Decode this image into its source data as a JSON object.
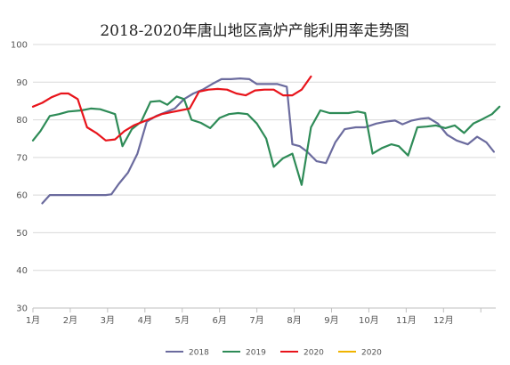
{
  "chart_data": {
    "type": "line",
    "title": "2018-2020年唐山地区高炉产能利用率走势图",
    "xlabel": "",
    "ylabel": "",
    "ylim": [
      30,
      100
    ],
    "yticks": [
      30,
      40,
      50,
      60,
      70,
      80,
      90,
      100
    ],
    "xlim": [
      1,
      13.4
    ],
    "xtick_labels": [
      "1月",
      "2月",
      "3月",
      "4月",
      "5月",
      "6月",
      "7月",
      "8月",
      "9月",
      "10月",
      "11月",
      "12月"
    ],
    "grid": true,
    "legend_position": "bottom",
    "series": [
      {
        "name": "2018",
        "color": "#6b6b9e",
        "points": [
          [
            1.25,
            57.8
          ],
          [
            1.45,
            60.0
          ],
          [
            1.7,
            60.0
          ],
          [
            2.0,
            60.0
          ],
          [
            2.3,
            60.0
          ],
          [
            2.6,
            60.0
          ],
          [
            2.95,
            60.0
          ],
          [
            3.1,
            60.2
          ],
          [
            3.3,
            63.0
          ],
          [
            3.55,
            66.0
          ],
          [
            3.8,
            71.0
          ],
          [
            4.05,
            79.5
          ],
          [
            4.3,
            81.0
          ],
          [
            4.55,
            82.0
          ],
          [
            4.8,
            83.0
          ],
          [
            5.05,
            85.5
          ],
          [
            5.3,
            87.0
          ],
          [
            5.55,
            88.0
          ],
          [
            5.8,
            89.5
          ],
          [
            6.05,
            90.8
          ],
          [
            6.3,
            90.8
          ],
          [
            6.55,
            91.0
          ],
          [
            6.8,
            90.8
          ],
          [
            7.0,
            89.5
          ],
          [
            7.25,
            89.5
          ],
          [
            7.55,
            89.5
          ],
          [
            7.8,
            88.8
          ],
          [
            7.95,
            73.5
          ],
          [
            8.15,
            73.0
          ],
          [
            8.35,
            71.5
          ],
          [
            8.6,
            69.0
          ],
          [
            8.85,
            68.5
          ],
          [
            9.1,
            74.0
          ],
          [
            9.35,
            77.5
          ],
          [
            9.65,
            78.0
          ],
          [
            9.9,
            78.0
          ],
          [
            10.2,
            79.0
          ],
          [
            10.45,
            79.5
          ],
          [
            10.7,
            79.8
          ],
          [
            10.9,
            78.8
          ],
          [
            11.15,
            79.8
          ],
          [
            11.4,
            80.3
          ],
          [
            11.6,
            80.5
          ],
          [
            11.85,
            79.0
          ],
          [
            12.1,
            76.0
          ],
          [
            12.35,
            74.5
          ],
          [
            12.65,
            73.5
          ],
          [
            12.9,
            75.5
          ],
          [
            13.15,
            74.0
          ],
          [
            13.35,
            71.5
          ]
        ]
      },
      {
        "name": "2019",
        "color": "#2e8b57",
        "points": [
          [
            1.0,
            74.5
          ],
          [
            1.2,
            77.0
          ],
          [
            1.45,
            81.0
          ],
          [
            1.7,
            81.5
          ],
          [
            1.95,
            82.2
          ],
          [
            2.3,
            82.5
          ],
          [
            2.55,
            83.0
          ],
          [
            2.8,
            82.8
          ],
          [
            3.05,
            82.0
          ],
          [
            3.2,
            81.5
          ],
          [
            3.4,
            73.0
          ],
          [
            3.65,
            77.5
          ],
          [
            3.9,
            79.5
          ],
          [
            4.15,
            84.8
          ],
          [
            4.4,
            85.0
          ],
          [
            4.6,
            84.0
          ],
          [
            4.85,
            86.2
          ],
          [
            5.05,
            85.5
          ],
          [
            5.25,
            80.0
          ],
          [
            5.5,
            79.2
          ],
          [
            5.75,
            77.8
          ],
          [
            6.0,
            80.5
          ],
          [
            6.25,
            81.5
          ],
          [
            6.5,
            81.8
          ],
          [
            6.75,
            81.5
          ],
          [
            7.0,
            79.0
          ],
          [
            7.25,
            75.0
          ],
          [
            7.45,
            67.5
          ],
          [
            7.7,
            69.8
          ],
          [
            7.95,
            71.0
          ],
          [
            8.2,
            62.7
          ],
          [
            8.45,
            78.0
          ],
          [
            8.7,
            82.5
          ],
          [
            8.95,
            81.8
          ],
          [
            9.2,
            81.8
          ],
          [
            9.45,
            81.8
          ],
          [
            9.7,
            82.2
          ],
          [
            9.9,
            81.8
          ],
          [
            10.1,
            71.0
          ],
          [
            10.35,
            72.5
          ],
          [
            10.6,
            73.5
          ],
          [
            10.8,
            73.0
          ],
          [
            11.05,
            70.5
          ],
          [
            11.3,
            78.0
          ],
          [
            11.55,
            78.2
          ],
          [
            11.8,
            78.5
          ],
          [
            12.05,
            77.8
          ],
          [
            12.3,
            78.5
          ],
          [
            12.55,
            76.5
          ],
          [
            12.8,
            79.0
          ],
          [
            13.05,
            80.2
          ],
          [
            13.3,
            81.5
          ],
          [
            13.5,
            83.5
          ]
        ]
      },
      {
        "name": "2020",
        "color": "#e8141b",
        "points": [
          [
            1.0,
            83.5
          ],
          [
            1.25,
            84.5
          ],
          [
            1.5,
            86.0
          ],
          [
            1.75,
            87.0
          ],
          [
            1.95,
            87.0
          ],
          [
            2.2,
            85.5
          ],
          [
            2.45,
            78.0
          ],
          [
            2.7,
            76.5
          ],
          [
            2.95,
            74.5
          ],
          [
            3.2,
            74.8
          ],
          [
            3.45,
            77.0
          ],
          [
            3.7,
            78.5
          ],
          [
            3.95,
            79.5
          ],
          [
            4.2,
            80.5
          ],
          [
            4.45,
            81.5
          ],
          [
            4.7,
            82.0
          ],
          [
            4.95,
            82.5
          ],
          [
            5.2,
            83.0
          ],
          [
            5.45,
            87.5
          ],
          [
            5.7,
            88.0
          ],
          [
            5.95,
            88.2
          ],
          [
            6.2,
            88.0
          ],
          [
            6.45,
            87.0
          ],
          [
            6.7,
            86.5
          ],
          [
            6.95,
            87.8
          ],
          [
            7.2,
            88.0
          ],
          [
            7.45,
            88.0
          ],
          [
            7.7,
            86.5
          ],
          [
            7.95,
            86.5
          ],
          [
            8.2,
            88.0
          ],
          [
            8.45,
            91.5
          ]
        ]
      },
      {
        "name": "2020",
        "color": "#f0b400",
        "points": []
      }
    ]
  }
}
